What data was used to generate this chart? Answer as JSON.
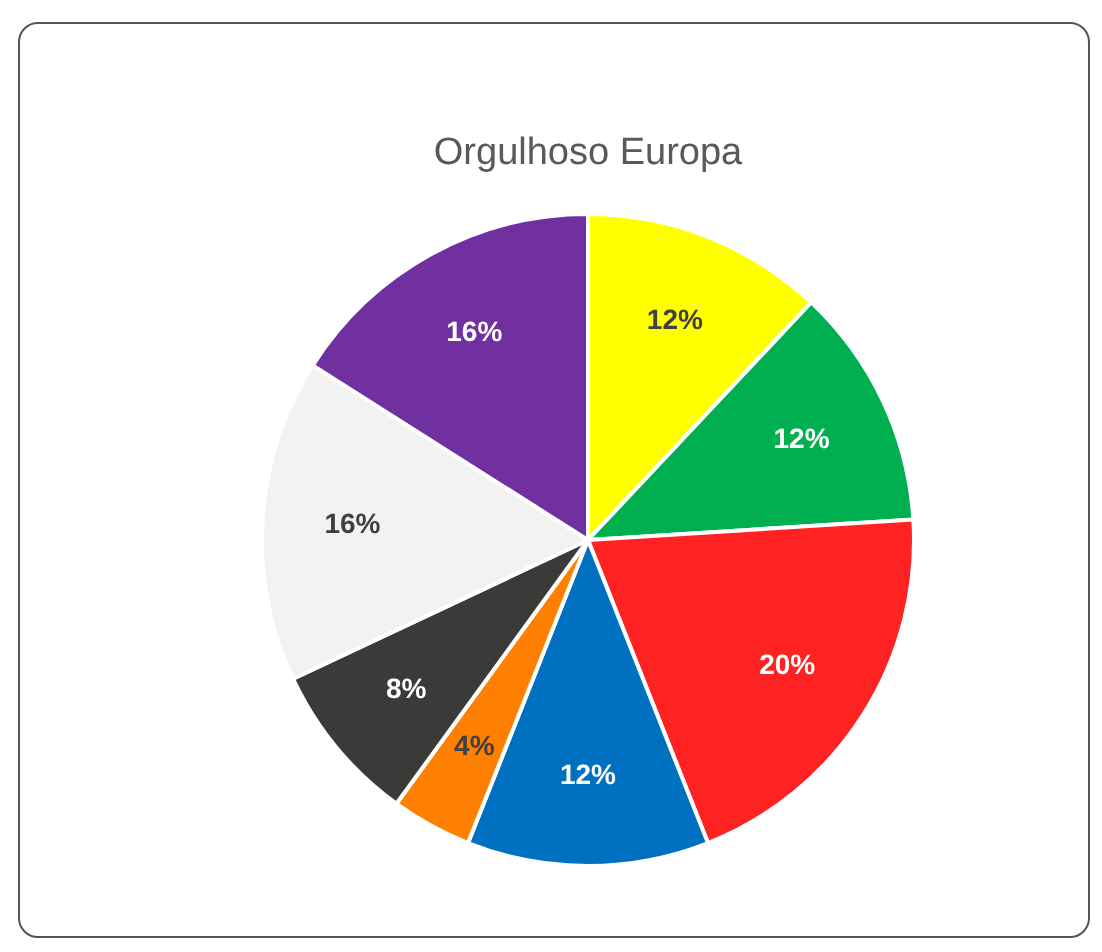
{
  "chart_data": {
    "type": "pie",
    "title": "Orgulhoso Europa",
    "categories": [
      null,
      null,
      null,
      null,
      null,
      null,
      null,
      null
    ],
    "values": [
      12,
      12,
      20,
      12,
      4,
      8,
      16,
      16
    ],
    "colors": [
      "#ffff00",
      "#00b050",
      "#ff2222",
      "#0070c0",
      "#ff8000",
      "#3a3a38",
      "#f2f2f2",
      "#7030a0"
    ],
    "value_labels": [
      "12%",
      "12%",
      "20%",
      "12%",
      "4%",
      "8%",
      "16%",
      "16%"
    ],
    "legend": false
  }
}
